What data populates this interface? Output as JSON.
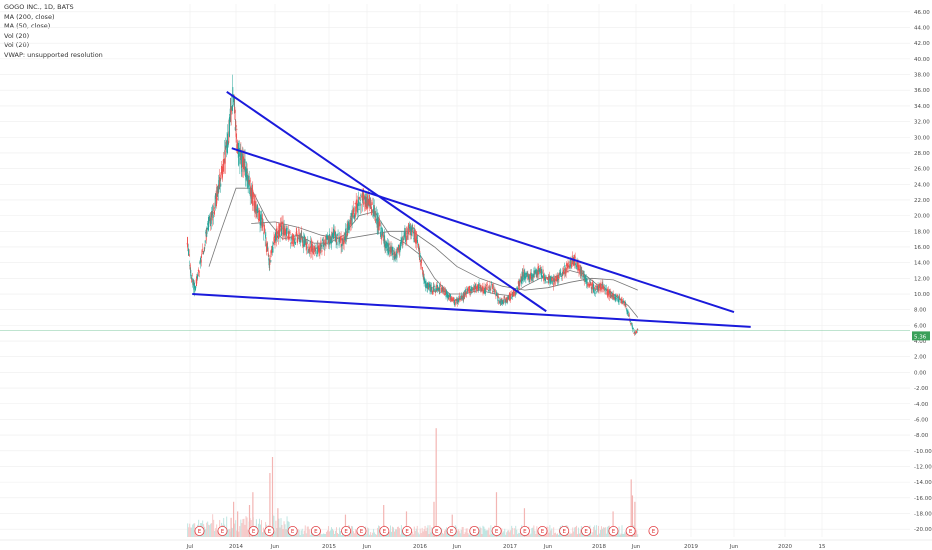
{
  "legend": {
    "title": "GOGO INC., 1D, BATS",
    "ma200": "MA (200, close)",
    "ma50": "MA (50, close)",
    "vol1": "Vol (20)",
    "vol2": "Vol (20)",
    "vwap": "VWAP: unsupported resolution"
  },
  "colors": {
    "up": "#26a69a",
    "down": "#ef5350",
    "trendline": "#1a1adb",
    "ma": "#777777",
    "grid": "#eeeeee",
    "price_badge": "#3aa05a",
    "earnings": "#e0393e"
  },
  "last_price_label": "5.36",
  "chart_data": {
    "type": "candlestick",
    "title": "GOGO INC., 1D, BATS",
    "xlabel": "",
    "ylabel": "",
    "x_ticks": [
      "Jul",
      "2014",
      "Jun",
      "2015",
      "Jun",
      "2016",
      "Jun",
      "2017",
      "Jun",
      "2018",
      "Jun",
      "2019",
      "Jun",
      "2020",
      "15"
    ],
    "x_range": [
      "2013-06",
      "2020-02"
    ],
    "y_ticks": [
      "46.00",
      "44.00",
      "42.00",
      "40.00",
      "38.00",
      "36.00",
      "34.00",
      "32.00",
      "30.00",
      "28.00",
      "26.00",
      "24.00",
      "22.00",
      "20.00",
      "18.00",
      "16.00",
      "14.00",
      "12.00",
      "10.00",
      "8.00",
      "6.00",
      "4.00",
      "2.00",
      "0.00",
      "-2.00",
      "-4.00",
      "-6.00",
      "-8.00",
      "-10.00",
      "-12.00",
      "-14.00",
      "-16.00",
      "-18.00",
      "-20.00"
    ],
    "ylim": [
      -21,
      47
    ],
    "price_series": {
      "name": "",
      "points": [
        [
          "2013-06-20",
          16.8
        ],
        [
          "2013-07-05",
          12.5
        ],
        [
          "2013-07-20",
          10.5
        ],
        [
          "2013-08-05",
          12.8
        ],
        [
          "2013-08-25",
          16.0
        ],
        [
          "2013-09-10",
          18.5
        ],
        [
          "2013-10-01",
          20.5
        ],
        [
          "2013-11-10",
          26.0
        ],
        [
          "2013-12-01",
          30.0
        ],
        [
          "2013-12-20",
          35.5
        ],
        [
          "2014-01-10",
          28.0
        ],
        [
          "2014-02-05",
          26.0
        ],
        [
          "2014-03-01",
          23.0
        ],
        [
          "2014-03-25",
          20.5
        ],
        [
          "2014-04-20",
          18.5
        ],
        [
          "2014-05-10",
          14.0
        ],
        [
          "2014-06-05",
          17.5
        ],
        [
          "2014-07-01",
          18.5
        ],
        [
          "2014-08-01",
          17.0
        ],
        [
          "2014-09-05",
          17.5
        ],
        [
          "2014-10-10",
          16.0
        ],
        [
          "2014-11-10",
          15.5
        ],
        [
          "2014-12-15",
          16.5
        ],
        [
          "2015-01-20",
          17.5
        ],
        [
          "2015-02-20",
          16.5
        ],
        [
          "2015-03-20",
          18.5
        ],
        [
          "2015-04-20",
          21.0
        ],
        [
          "2015-05-15",
          22.0
        ],
        [
          "2015-06-15",
          21.5
        ],
        [
          "2015-07-15",
          19.0
        ],
        [
          "2015-08-20",
          16.0
        ],
        [
          "2015-09-25",
          15.0
        ],
        [
          "2015-10-20",
          16.5
        ],
        [
          "2015-11-20",
          18.5
        ],
        [
          "2015-12-20",
          17.0
        ],
        [
          "2016-01-20",
          11.5
        ],
        [
          "2016-02-20",
          10.5
        ],
        [
          "2016-03-20",
          10.8
        ],
        [
          "2016-04-20",
          10.0
        ],
        [
          "2016-05-20",
          9.0
        ],
        [
          "2016-06-20",
          9.5
        ],
        [
          "2016-07-20",
          10.5
        ],
        [
          "2016-08-20",
          11.0
        ],
        [
          "2016-09-20",
          10.5
        ],
        [
          "2016-10-20",
          11.0
        ],
        [
          "2016-11-20",
          9.0
        ],
        [
          "2016-12-20",
          9.2
        ],
        [
          "2017-01-25",
          10.5
        ],
        [
          "2017-02-25",
          12.5
        ],
        [
          "2017-03-25",
          12.0
        ],
        [
          "2017-04-25",
          13.0
        ],
        [
          "2017-05-25",
          12.0
        ],
        [
          "2017-06-25",
          11.5
        ],
        [
          "2017-07-25",
          12.5
        ],
        [
          "2017-08-25",
          13.5
        ],
        [
          "2017-09-15",
          14.5
        ],
        [
          "2017-10-15",
          13.0
        ],
        [
          "2017-11-15",
          11.5
        ],
        [
          "2017-12-15",
          10.5
        ],
        [
          "2018-01-15",
          11.0
        ],
        [
          "2018-02-15",
          10.0
        ],
        [
          "2018-03-15",
          9.5
        ],
        [
          "2018-04-15",
          9.0
        ],
        [
          "2018-05-10",
          6.5
        ],
        [
          "2018-05-25",
          5.0
        ],
        [
          "2018-06-08",
          5.36
        ]
      ]
    },
    "ma_series": [
      {
        "name": "",
        "points": [
          [
            "2013-09-15",
            13.5
          ],
          [
            "2013-11-01",
            18.0
          ],
          [
            "2014-01-01",
            23.5
          ],
          [
            "2014-03-01",
            23.5
          ],
          [
            "2014-05-01",
            19.5
          ],
          [
            "2014-07-01",
            17.0
          ],
          [
            "2014-09-01",
            17.5
          ],
          [
            "2014-11-01",
            16.5
          ],
          [
            "2015-01-01",
            16.5
          ],
          [
            "2015-03-01",
            17.5
          ],
          [
            "2015-05-01",
            20.0
          ],
          [
            "2015-07-01",
            20.5
          ],
          [
            "2015-09-01",
            17.5
          ],
          [
            "2015-11-01",
            16.5
          ],
          [
            "2016-01-01",
            15.0
          ],
          [
            "2016-03-01",
            12.0
          ],
          [
            "2016-05-01",
            10.0
          ],
          [
            "2016-07-01",
            10.0
          ],
          [
            "2016-09-01",
            10.5
          ],
          [
            "2016-11-01",
            10.0
          ],
          [
            "2017-01-01",
            9.8
          ],
          [
            "2017-03-01",
            11.0
          ],
          [
            "2017-05-01",
            12.0
          ],
          [
            "2017-07-01",
            12.2
          ],
          [
            "2017-09-01",
            13.0
          ],
          [
            "2017-11-01",
            12.5
          ],
          [
            "2018-01-01",
            11.0
          ],
          [
            "2018-03-01",
            10.0
          ],
          [
            "2018-05-01",
            8.5
          ],
          [
            "2018-06-08",
            7.0
          ]
        ]
      },
      {
        "name": "",
        "points": [
          [
            "2014-03-01",
            19.0
          ],
          [
            "2014-06-01",
            19.2
          ],
          [
            "2014-09-01",
            18.5
          ],
          [
            "2014-12-01",
            17.5
          ],
          [
            "2015-03-01",
            17.0
          ],
          [
            "2015-06-01",
            17.5
          ],
          [
            "2015-09-01",
            18.0
          ],
          [
            "2015-12-01",
            18.0
          ],
          [
            "2016-03-01",
            16.0
          ],
          [
            "2016-06-01",
            13.5
          ],
          [
            "2016-09-01",
            12.0
          ],
          [
            "2016-12-01",
            11.0
          ],
          [
            "2017-03-01",
            10.5
          ],
          [
            "2017-06-01",
            10.8
          ],
          [
            "2017-09-01",
            11.5
          ],
          [
            "2017-12-01",
            12.0
          ],
          [
            "2018-03-01",
            11.8
          ],
          [
            "2018-06-08",
            10.5
          ]
        ]
      }
    ],
    "trendlines": [
      {
        "from": [
          "2013-11-25",
          35.8
        ],
        "to": [
          "2017-05-25",
          7.8
        ]
      },
      {
        "from": [
          "2013-12-15",
          28.6
        ],
        "to": [
          "2019-06-01",
          7.7
        ]
      },
      {
        "from": [
          "2013-07-10",
          10.0
        ],
        "to": [
          "2019-08-10",
          5.8
        ]
      }
    ],
    "volume_bars_approx": [
      [
        "2013-12-10",
        6
      ],
      [
        "2013-12-20",
        11
      ],
      [
        "2014-01-05",
        8
      ],
      [
        "2014-02-20",
        10
      ],
      [
        "2014-03-05",
        14
      ],
      [
        "2014-05-10",
        20
      ],
      [
        "2014-05-20",
        25
      ],
      [
        "2014-06-10",
        9
      ],
      [
        "2015-03-05",
        7
      ],
      [
        "2015-08-05",
        10
      ],
      [
        "2015-11-05",
        8
      ],
      [
        "2016-02-25",
        11
      ],
      [
        "2016-03-05",
        34
      ],
      [
        "2016-05-10",
        7
      ],
      [
        "2016-11-05",
        14
      ],
      [
        "2017-02-25",
        9
      ],
      [
        "2018-02-25",
        8
      ],
      [
        "2018-05-10",
        18
      ],
      [
        "2018-05-15",
        13
      ],
      [
        "2018-05-25",
        11
      ]
    ],
    "earnings_markers": [
      "2013-08-08",
      "2013-11-08",
      "2014-03-10",
      "2014-05-10",
      "2014-08-10",
      "2014-11-10",
      "2015-03-10",
      "2015-05-10",
      "2015-08-10",
      "2015-11-10",
      "2016-03-10",
      "2016-05-10",
      "2016-08-10",
      "2016-11-08",
      "2017-03-01",
      "2017-05-10",
      "2017-08-08",
      "2017-11-08",
      "2018-03-01",
      "2018-05-10",
      "2018-08-08"
    ],
    "earnings_label": "E",
    "current_price_line": 5.36,
    "grid": true
  }
}
